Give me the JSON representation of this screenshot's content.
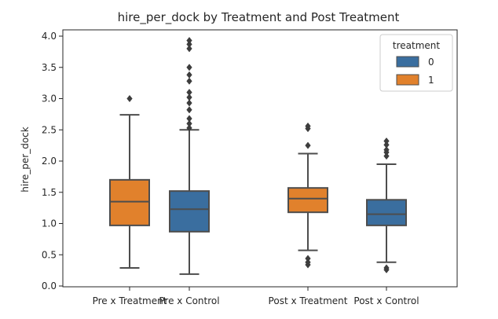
{
  "chart_data": {
    "type": "box",
    "title": "hire_per_dock by Treatment and Post Treatment",
    "xlabel": "",
    "ylabel": "hire_per_dock",
    "ylim": [
      0.0,
      4.1
    ],
    "yticks": [
      "0.0",
      "0.5",
      "1.0",
      "1.5",
      "2.0",
      "2.5",
      "3.0",
      "3.5",
      "4.0"
    ],
    "categories": [
      "Pre x Treatment",
      "Pre x Control",
      "Post x Treatment",
      "Post x Control"
    ],
    "legend": {
      "title": "treatment",
      "position": "top-right",
      "entries": [
        {
          "label": "0",
          "color": "#3a6e9f"
        },
        {
          "label": "1",
          "color": "#e1812c"
        }
      ]
    },
    "boxes": [
      {
        "category": "Pre x Treatment",
        "treatment": "1",
        "whisker_low": 0.29,
        "q1": 0.97,
        "median": 1.35,
        "q3": 1.7,
        "whisker_high": 2.74,
        "outliers": [
          3.0
        ]
      },
      {
        "category": "Pre x Control",
        "treatment": "0",
        "whisker_low": 0.19,
        "q1": 0.87,
        "median": 1.23,
        "q3": 1.52,
        "whisker_high": 2.5,
        "outliers": [
          2.53,
          2.6,
          2.68,
          2.82,
          2.93,
          3.02,
          3.1,
          3.28,
          3.38,
          3.5,
          3.8,
          3.87,
          3.93
        ]
      },
      {
        "category": "Post x Treatment",
        "treatment": "1",
        "whisker_low": 0.57,
        "q1": 1.18,
        "median": 1.4,
        "q3": 1.57,
        "whisker_high": 2.12,
        "outliers": [
          2.25,
          2.52,
          2.56,
          0.44,
          0.38,
          0.34
        ]
      },
      {
        "category": "Post x Control",
        "treatment": "0",
        "whisker_low": 0.38,
        "q1": 0.97,
        "median": 1.15,
        "q3": 1.38,
        "whisker_high": 1.95,
        "outliers": [
          2.08,
          2.14,
          2.18,
          2.26,
          2.32,
          0.29,
          0.26
        ]
      }
    ],
    "grid": false
  }
}
